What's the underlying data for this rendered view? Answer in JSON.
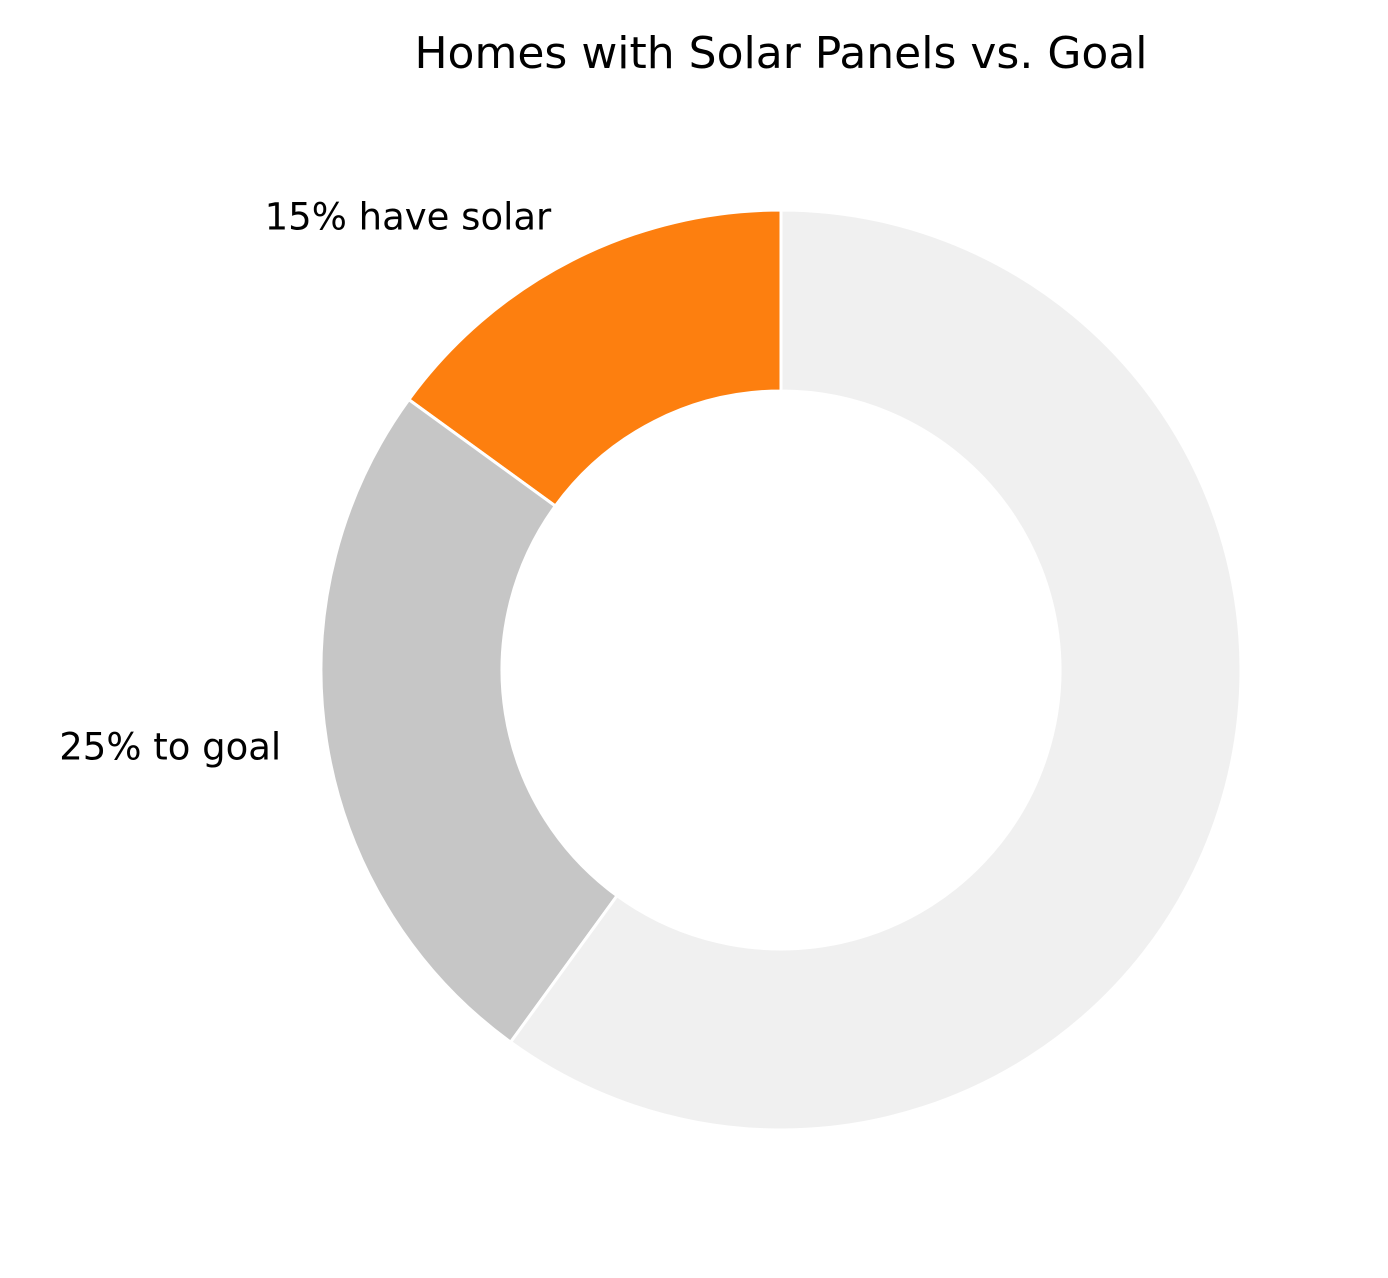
{
  "chart_data": {
    "type": "pie",
    "style": "donut",
    "title": "Homes with Solar Panels vs. Goal",
    "start_angle": "top",
    "direction": "counterclockwise",
    "slices": [
      {
        "label": "15% have solar",
        "value": 15,
        "color": "#fd7f0f"
      },
      {
        "label": "25% to goal",
        "value": 25,
        "color": "#c6c6c6"
      },
      {
        "label": "",
        "value": 60,
        "color": "#f0f0f0"
      }
    ]
  }
}
